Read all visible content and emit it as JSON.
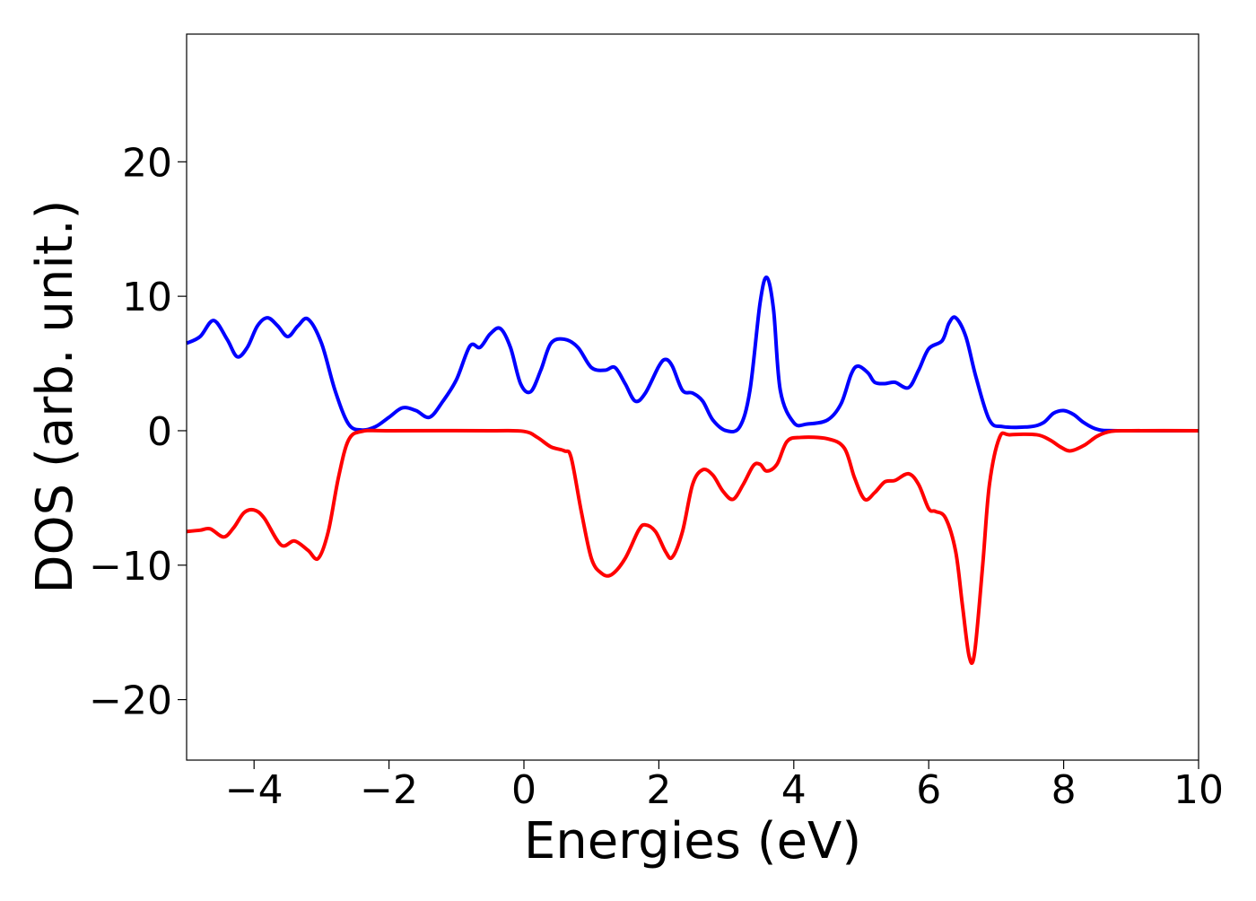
{
  "chart_data": {
    "type": "line",
    "title": "",
    "xlabel": "Energies (eV)",
    "ylabel": "DOS (arb. unit.)",
    "xlim": [
      -5,
      10
    ],
    "ylim": [
      -24.5,
      29.5
    ],
    "grid": false,
    "legend": "none",
    "x_ticks": [
      {
        "value": -4,
        "label": "−4"
      },
      {
        "value": -2,
        "label": "−2"
      },
      {
        "value": 0,
        "label": "0"
      },
      {
        "value": 2,
        "label": "2"
      },
      {
        "value": 4,
        "label": "4"
      },
      {
        "value": 6,
        "label": "6"
      },
      {
        "value": 8,
        "label": "8"
      },
      {
        "value": 10,
        "label": "10"
      }
    ],
    "y_ticks": [
      {
        "value": -20,
        "label": "−20"
      },
      {
        "value": -10,
        "label": "−10"
      },
      {
        "value": 0,
        "label": "0"
      },
      {
        "value": 10,
        "label": "10"
      },
      {
        "value": 20,
        "label": "20"
      }
    ],
    "series": [
      {
        "color": "#0000ff",
        "points": [
          [
            -5.0,
            6.5
          ],
          [
            -4.8,
            7.0
          ],
          [
            -4.6,
            8.2
          ],
          [
            -4.4,
            6.8
          ],
          [
            -4.25,
            5.5
          ],
          [
            -4.1,
            6.2
          ],
          [
            -3.95,
            7.8
          ],
          [
            -3.8,
            8.4
          ],
          [
            -3.65,
            7.8
          ],
          [
            -3.5,
            7.0
          ],
          [
            -3.35,
            7.8
          ],
          [
            -3.2,
            8.3
          ],
          [
            -3.0,
            6.5
          ],
          [
            -2.8,
            3.0
          ],
          [
            -2.6,
            0.5
          ],
          [
            -2.4,
            0.05
          ],
          [
            -2.2,
            0.3
          ],
          [
            -2.0,
            1.0
          ],
          [
            -1.8,
            1.7
          ],
          [
            -1.6,
            1.5
          ],
          [
            -1.4,
            1.0
          ],
          [
            -1.2,
            2.2
          ],
          [
            -1.0,
            3.8
          ],
          [
            -0.8,
            6.3
          ],
          [
            -0.65,
            6.2
          ],
          [
            -0.5,
            7.2
          ],
          [
            -0.35,
            7.6
          ],
          [
            -0.2,
            6.2
          ],
          [
            -0.05,
            3.5
          ],
          [
            0.1,
            2.9
          ],
          [
            0.25,
            4.5
          ],
          [
            0.4,
            6.5
          ],
          [
            0.6,
            6.8
          ],
          [
            0.8,
            6.2
          ],
          [
            1.0,
            4.7
          ],
          [
            1.2,
            4.5
          ],
          [
            1.35,
            4.7
          ],
          [
            1.5,
            3.5
          ],
          [
            1.65,
            2.2
          ],
          [
            1.8,
            2.8
          ],
          [
            2.0,
            4.8
          ],
          [
            2.1,
            5.3
          ],
          [
            2.2,
            4.8
          ],
          [
            2.35,
            3.0
          ],
          [
            2.5,
            2.8
          ],
          [
            2.65,
            2.2
          ],
          [
            2.8,
            0.8
          ],
          [
            3.0,
            0.0
          ],
          [
            3.2,
            0.3
          ],
          [
            3.35,
            3.0
          ],
          [
            3.5,
            9.5
          ],
          [
            3.6,
            11.4
          ],
          [
            3.7,
            9.0
          ],
          [
            3.8,
            3.0
          ],
          [
            4.0,
            0.6
          ],
          [
            4.2,
            0.5
          ],
          [
            4.5,
            0.8
          ],
          [
            4.7,
            2.0
          ],
          [
            4.85,
            4.2
          ],
          [
            4.95,
            4.8
          ],
          [
            5.1,
            4.3
          ],
          [
            5.2,
            3.6
          ],
          [
            5.35,
            3.5
          ],
          [
            5.5,
            3.6
          ],
          [
            5.7,
            3.2
          ],
          [
            5.85,
            4.5
          ],
          [
            6.0,
            6.1
          ],
          [
            6.2,
            6.7
          ],
          [
            6.3,
            8.0
          ],
          [
            6.4,
            8.4
          ],
          [
            6.55,
            7.0
          ],
          [
            6.7,
            4.0
          ],
          [
            6.9,
            0.8
          ],
          [
            7.1,
            0.3
          ],
          [
            7.5,
            0.3
          ],
          [
            7.7,
            0.6
          ],
          [
            7.85,
            1.3
          ],
          [
            8.0,
            1.5
          ],
          [
            8.15,
            1.2
          ],
          [
            8.3,
            0.6
          ],
          [
            8.5,
            0.1
          ],
          [
            8.8,
            0.0
          ],
          [
            10.0,
            0.0
          ]
        ]
      },
      {
        "color": "#ff0000",
        "points": [
          [
            -5.0,
            -7.5
          ],
          [
            -4.8,
            -7.4
          ],
          [
            -4.65,
            -7.3
          ],
          [
            -4.45,
            -7.9
          ],
          [
            -4.3,
            -7.2
          ],
          [
            -4.15,
            -6.1
          ],
          [
            -4.0,
            -5.9
          ],
          [
            -3.85,
            -6.5
          ],
          [
            -3.6,
            -8.5
          ],
          [
            -3.4,
            -8.2
          ],
          [
            -3.2,
            -8.9
          ],
          [
            -3.05,
            -9.5
          ],
          [
            -2.9,
            -7.5
          ],
          [
            -2.75,
            -3.5
          ],
          [
            -2.6,
            -0.7
          ],
          [
            -2.4,
            -0.05
          ],
          [
            -2.0,
            0.0
          ],
          [
            -0.5,
            0.0
          ],
          [
            0.0,
            -0.05
          ],
          [
            0.2,
            -0.5
          ],
          [
            0.4,
            -1.2
          ],
          [
            0.6,
            -1.5
          ],
          [
            0.7,
            -2.0
          ],
          [
            0.85,
            -6.0
          ],
          [
            1.0,
            -9.5
          ],
          [
            1.15,
            -10.6
          ],
          [
            1.3,
            -10.7
          ],
          [
            1.5,
            -9.5
          ],
          [
            1.7,
            -7.4
          ],
          [
            1.8,
            -7.0
          ],
          [
            1.95,
            -7.5
          ],
          [
            2.1,
            -9.0
          ],
          [
            2.2,
            -9.4
          ],
          [
            2.35,
            -7.5
          ],
          [
            2.5,
            -4.0
          ],
          [
            2.65,
            -2.9
          ],
          [
            2.8,
            -3.3
          ],
          [
            2.95,
            -4.5
          ],
          [
            3.1,
            -5.1
          ],
          [
            3.25,
            -4.0
          ],
          [
            3.4,
            -2.6
          ],
          [
            3.5,
            -2.5
          ],
          [
            3.6,
            -3.0
          ],
          [
            3.75,
            -2.5
          ],
          [
            3.9,
            -0.8
          ],
          [
            4.1,
            -0.5
          ],
          [
            4.5,
            -0.6
          ],
          [
            4.75,
            -1.3
          ],
          [
            4.9,
            -3.5
          ],
          [
            5.05,
            -5.1
          ],
          [
            5.2,
            -4.6
          ],
          [
            5.35,
            -3.8
          ],
          [
            5.5,
            -3.7
          ],
          [
            5.7,
            -3.2
          ],
          [
            5.85,
            -4.0
          ],
          [
            6.0,
            -5.8
          ],
          [
            6.1,
            -6.0
          ],
          [
            6.25,
            -6.5
          ],
          [
            6.4,
            -9.0
          ],
          [
            6.5,
            -13.0
          ],
          [
            6.6,
            -16.8
          ],
          [
            6.68,
            -16.5
          ],
          [
            6.8,
            -10.0
          ],
          [
            6.9,
            -4.0
          ],
          [
            7.05,
            -0.5
          ],
          [
            7.2,
            -0.3
          ],
          [
            7.6,
            -0.3
          ],
          [
            7.8,
            -0.7
          ],
          [
            7.95,
            -1.2
          ],
          [
            8.1,
            -1.5
          ],
          [
            8.3,
            -1.1
          ],
          [
            8.5,
            -0.4
          ],
          [
            8.7,
            -0.05
          ],
          [
            9.0,
            0.0
          ],
          [
            10.0,
            0.0
          ]
        ]
      }
    ]
  }
}
